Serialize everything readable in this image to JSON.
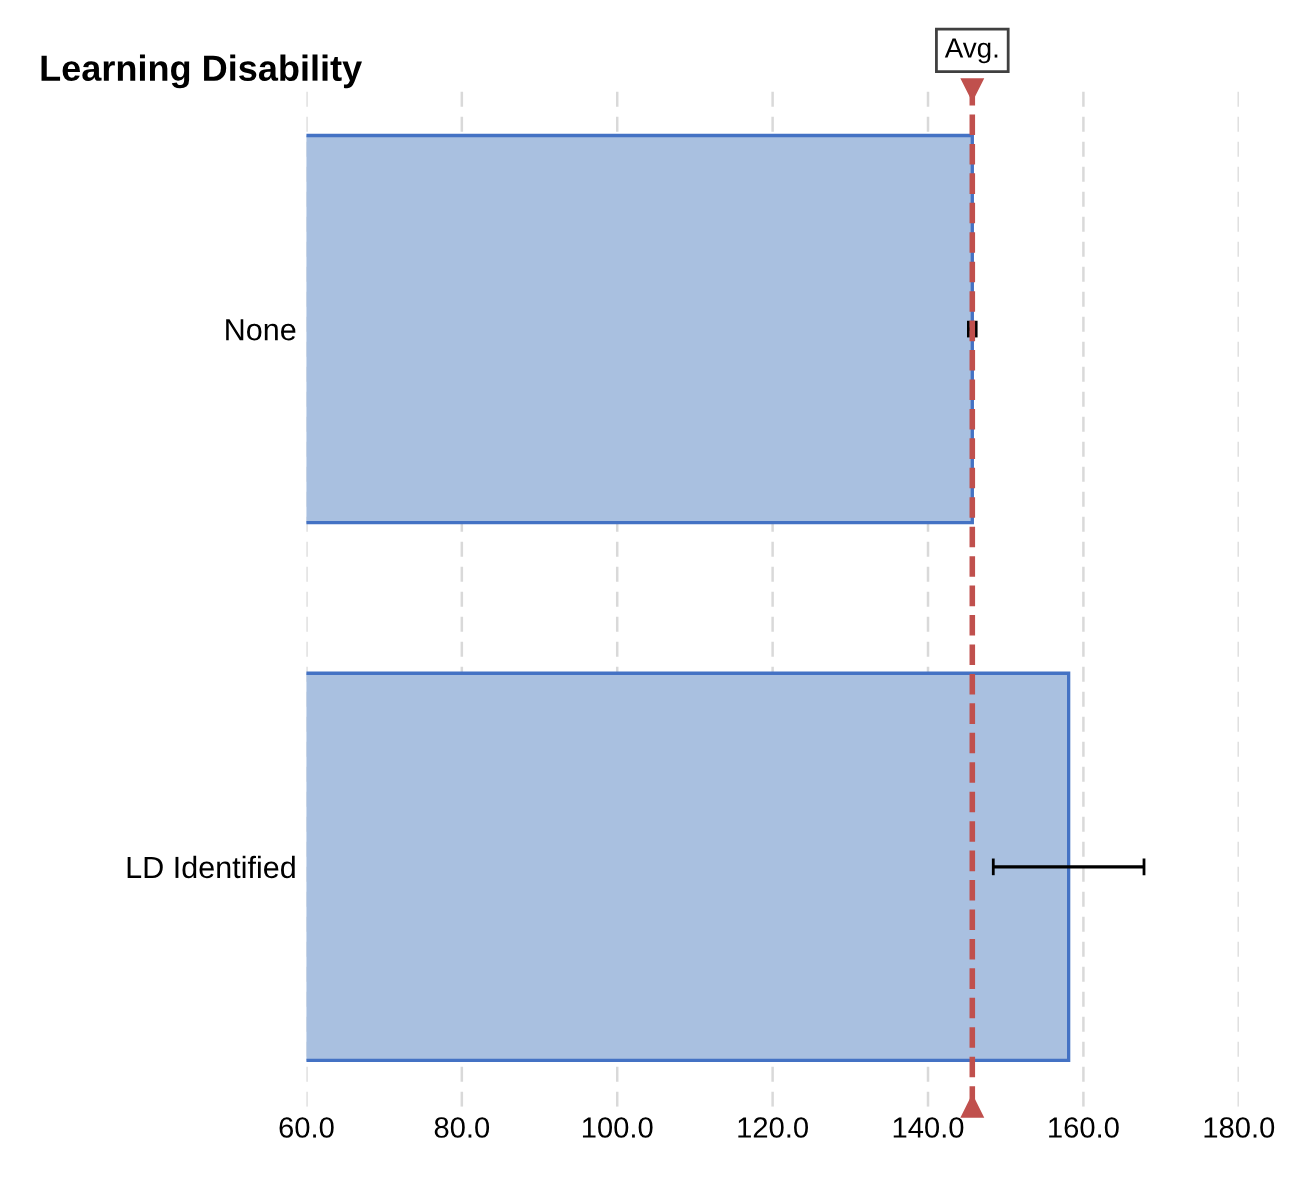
{
  "chart_data": {
    "type": "bar",
    "orientation": "horizontal",
    "title": "Learning Disability",
    "categories": [
      "None",
      "LD Identified"
    ],
    "values": [
      145.7,
      158.1
    ],
    "errors": [
      0.5,
      9.7
    ],
    "color": "#a9c0e0",
    "xlim": [
      60,
      180
    ],
    "xticks": [
      {
        "value": 60,
        "label": "60.0"
      },
      {
        "value": 80,
        "label": "80.0"
      },
      {
        "value": 100,
        "label": "100.0"
      },
      {
        "value": 120,
        "label": "120.0"
      },
      {
        "value": 140,
        "label": "140.0"
      },
      {
        "value": 160,
        "label": "160.0"
      },
      {
        "value": 180,
        "label": "180.0"
      }
    ],
    "grid": "x",
    "ref_lines": [
      {
        "axis": "x",
        "value": 145.7,
        "label": "Avg.",
        "color": "#c0504d",
        "line_style": "dashed"
      }
    ]
  }
}
